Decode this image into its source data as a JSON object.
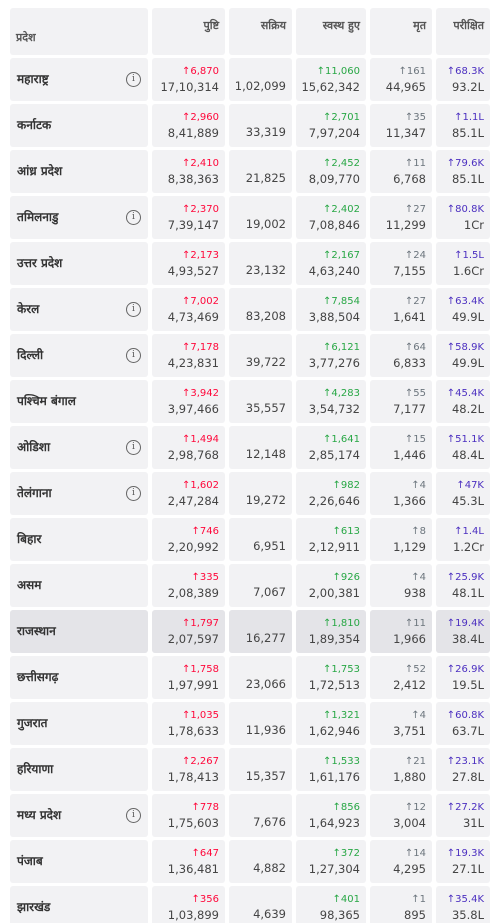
{
  "header": [
    "प्रदेश",
    "पुष्टि",
    "सक्रिय",
    "स्वस्थ हुए",
    "मृत",
    "परीक्षित"
  ],
  "rows": [
    {
      "state": "महाराष्ट्र",
      "info": true,
      "confirmed_delta": "↑6,870",
      "confirmed": "17,10,314",
      "active": "1,02,099",
      "recovered_delta": "↑11,060",
      "recovered": "15,62,342",
      "deaths_delta": "↑161",
      "deaths": "44,965",
      "tested_delta": "↑68.3K",
      "tested": "93.2L"
    },
    {
      "state": "कर्नाटक",
      "info": false,
      "confirmed_delta": "↑2,960",
      "confirmed": "8,41,889",
      "active": "33,319",
      "recovered_delta": "↑2,701",
      "recovered": "7,97,204",
      "deaths_delta": "↑35",
      "deaths": "11,347",
      "tested_delta": "↑1.1L",
      "tested": "85.1L"
    },
    {
      "state": "आंध्र प्रदेश",
      "info": false,
      "confirmed_delta": "↑2,410",
      "confirmed": "8,38,363",
      "active": "21,825",
      "recovered_delta": "↑2,452",
      "recovered": "8,09,770",
      "deaths_delta": "↑11",
      "deaths": "6,768",
      "tested_delta": "↑79.6K",
      "tested": "85.1L"
    },
    {
      "state": "तमिलनाडु",
      "info": true,
      "confirmed_delta": "↑2,370",
      "confirmed": "7,39,147",
      "active": "19,002",
      "recovered_delta": "↑2,402",
      "recovered": "7,08,846",
      "deaths_delta": "↑27",
      "deaths": "11,299",
      "tested_delta": "↑80.8K",
      "tested": "1Cr"
    },
    {
      "state": "उत्तर प्रदेश",
      "info": false,
      "confirmed_delta": "↑2,173",
      "confirmed": "4,93,527",
      "active": "23,132",
      "recovered_delta": "↑2,167",
      "recovered": "4,63,240",
      "deaths_delta": "↑24",
      "deaths": "7,155",
      "tested_delta": "↑1.5L",
      "tested": "1.6Cr"
    },
    {
      "state": "केरल",
      "info": true,
      "confirmed_delta": "↑7,002",
      "confirmed": "4,73,469",
      "active": "83,208",
      "recovered_delta": "↑7,854",
      "recovered": "3,88,504",
      "deaths_delta": "↑27",
      "deaths": "1,641",
      "tested_delta": "↑63.4K",
      "tested": "49.9L"
    },
    {
      "state": "दिल्ली",
      "info": true,
      "confirmed_delta": "↑7,178",
      "confirmed": "4,23,831",
      "active": "39,722",
      "recovered_delta": "↑6,121",
      "recovered": "3,77,276",
      "deaths_delta": "↑64",
      "deaths": "6,833",
      "tested_delta": "↑58.9K",
      "tested": "49.9L"
    },
    {
      "state": "पश्चिम बंगाल",
      "info": false,
      "confirmed_delta": "↑3,942",
      "confirmed": "3,97,466",
      "active": "35,557",
      "recovered_delta": "↑4,283",
      "recovered": "3,54,732",
      "deaths_delta": "↑55",
      "deaths": "7,177",
      "tested_delta": "↑45.4K",
      "tested": "48.2L"
    },
    {
      "state": "ओडिशा",
      "info": true,
      "confirmed_delta": "↑1,494",
      "confirmed": "2,98,768",
      "active": "12,148",
      "recovered_delta": "↑1,641",
      "recovered": "2,85,174",
      "deaths_delta": "↑15",
      "deaths": "1,446",
      "tested_delta": "↑51.1K",
      "tested": "48.4L"
    },
    {
      "state": "तेलंगाना",
      "info": true,
      "confirmed_delta": "↑1,602",
      "confirmed": "2,47,284",
      "active": "19,272",
      "recovered_delta": "↑982",
      "recovered": "2,26,646",
      "deaths_delta": "↑4",
      "deaths": "1,366",
      "tested_delta": "↑47K",
      "tested": "45.3L"
    },
    {
      "state": "बिहार",
      "info": false,
      "confirmed_delta": "↑746",
      "confirmed": "2,20,992",
      "active": "6,951",
      "recovered_delta": "↑613",
      "recovered": "2,12,911",
      "deaths_delta": "↑8",
      "deaths": "1,129",
      "tested_delta": "↑1.4L",
      "tested": "1.2Cr"
    },
    {
      "state": "असम",
      "info": false,
      "confirmed_delta": "↑335",
      "confirmed": "2,08,389",
      "active": "7,067",
      "recovered_delta": "↑926",
      "recovered": "2,00,381",
      "deaths_delta": "↑4",
      "deaths": "938",
      "tested_delta": "↑25.9K",
      "tested": "48.1L"
    },
    {
      "state": "राजस्थान",
      "info": false,
      "highlighted": true,
      "confirmed_delta": "↑1,797",
      "confirmed": "2,07,597",
      "active": "16,277",
      "recovered_delta": "↑1,810",
      "recovered": "1,89,354",
      "deaths_delta": "↑11",
      "deaths": "1,966",
      "tested_delta": "↑19.4K",
      "tested": "38.4L"
    },
    {
      "state": "छत्तीसगढ़",
      "info": false,
      "confirmed_delta": "↑1,758",
      "confirmed": "1,97,991",
      "active": "23,066",
      "recovered_delta": "↑1,753",
      "recovered": "1,72,513",
      "deaths_delta": "↑52",
      "deaths": "2,412",
      "tested_delta": "↑26.9K",
      "tested": "19.5L"
    },
    {
      "state": "गुजरात",
      "info": false,
      "confirmed_delta": "↑1,035",
      "confirmed": "1,78,633",
      "active": "11,936",
      "recovered_delta": "↑1,321",
      "recovered": "1,62,946",
      "deaths_delta": "↑4",
      "deaths": "3,751",
      "tested_delta": "↑60.8K",
      "tested": "63.7L"
    },
    {
      "state": "हरियाणा",
      "info": false,
      "confirmed_delta": "↑2,267",
      "confirmed": "1,78,413",
      "active": "15,357",
      "recovered_delta": "↑1,533",
      "recovered": "1,61,176",
      "deaths_delta": "↑21",
      "deaths": "1,880",
      "tested_delta": "↑23.1K",
      "tested": "27.8L"
    },
    {
      "state": "मध्य प्रदेश",
      "info": true,
      "confirmed_delta": "↑778",
      "confirmed": "1,75,603",
      "active": "7,676",
      "recovered_delta": "↑856",
      "recovered": "1,64,923",
      "deaths_delta": "↑12",
      "deaths": "3,004",
      "tested_delta": "↑27.2K",
      "tested": "31L"
    },
    {
      "state": "पंजाब",
      "info": false,
      "confirmed_delta": "↑647",
      "confirmed": "1,36,481",
      "active": "4,882",
      "recovered_delta": "↑372",
      "recovered": "1,27,304",
      "deaths_delta": "↑14",
      "deaths": "4,295",
      "tested_delta": "↑19.3K",
      "tested": "27.1L"
    },
    {
      "state": "झारखंड",
      "info": false,
      "confirmed_delta": "↑356",
      "confirmed": "1,03,899",
      "active": "4,639",
      "recovered_delta": "↑401",
      "recovered": "98,365",
      "deaths_delta": "↑1",
      "deaths": "895",
      "tested_delta": "↑35.4K",
      "tested": "35.8L"
    }
  ]
}
